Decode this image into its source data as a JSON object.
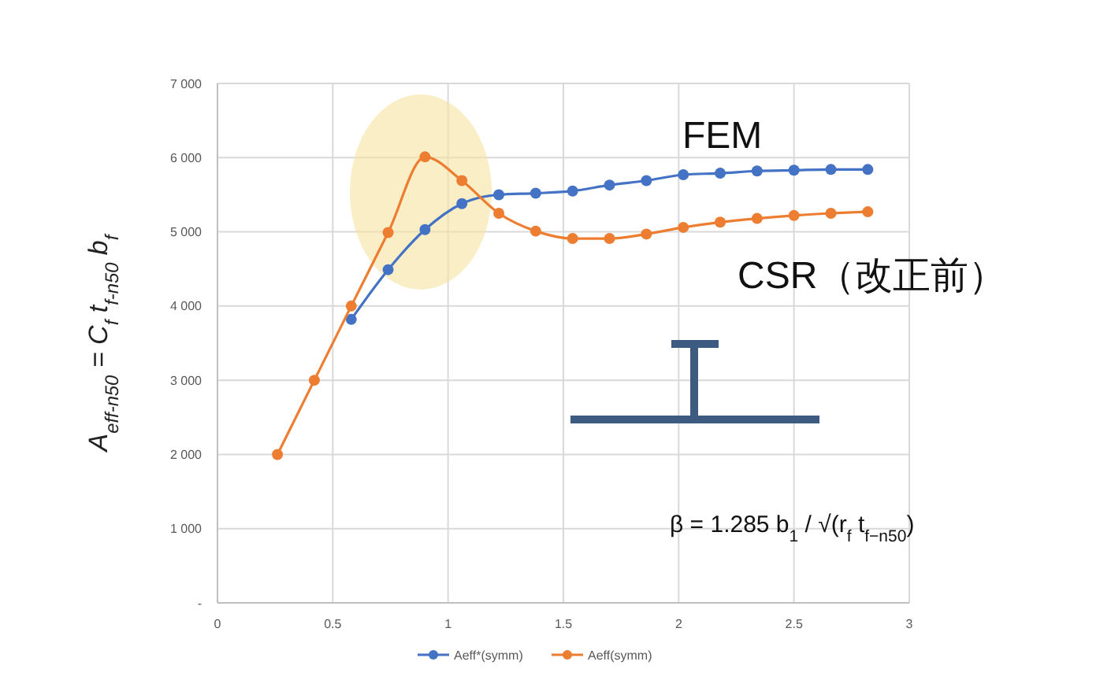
{
  "chart_data": {
    "type": "line",
    "ylabel": "A$_{eff-n50}$ = C$_{f}$ t$_{f-n50}$ b$_{f}$",
    "x": [
      0.26,
      0.42,
      0.58,
      0.74,
      0.9,
      1.06,
      1.22,
      1.38,
      1.54,
      1.7,
      1.86,
      2.02,
      2.18,
      2.34,
      2.5,
      2.66,
      2.82
    ],
    "series": [
      {
        "name": "Aeff*(symm)",
        "color": "#4472c4",
        "values": [
          null,
          null,
          3820,
          4490,
          5030,
          5380,
          5500,
          5520,
          5550,
          5630,
          5690,
          5770,
          5790,
          5820,
          5830,
          5840,
          5840
        ]
      },
      {
        "name": "Aeff(symm)",
        "color": "#ed7d31",
        "values": [
          2000,
          3000,
          4000,
          4990,
          6010,
          5690,
          5250,
          5010,
          4910,
          4910,
          4970,
          5060,
          5130,
          5180,
          5220,
          5250,
          5270
        ]
      }
    ],
    "xlim": [
      0,
      3
    ],
    "xticks": [
      0,
      0.5,
      1,
      1.5,
      2,
      2.5,
      3
    ],
    "ylim": [
      0,
      7000
    ],
    "yticks": [
      {
        "value": 0,
        "label": "-"
      },
      {
        "value": 1000,
        "label": "1 000"
      },
      {
        "value": 2000,
        "label": "2 000"
      },
      {
        "value": 3000,
        "label": "3 000"
      },
      {
        "value": 4000,
        "label": "4 000"
      },
      {
        "value": 5000,
        "label": "5 000"
      },
      {
        "value": 6000,
        "label": "6 000"
      },
      {
        "value": 7000,
        "label": "7 000"
      }
    ],
    "grid": true,
    "legend": "bottom",
    "marker": "circle",
    "line_style": "solid",
    "annotations": [
      "FEM",
      "CSR（改正前）",
      "β = 1.285 b$_{1}$ / √(r$_{f}$ t$_{f−n50}$)"
    ]
  }
}
